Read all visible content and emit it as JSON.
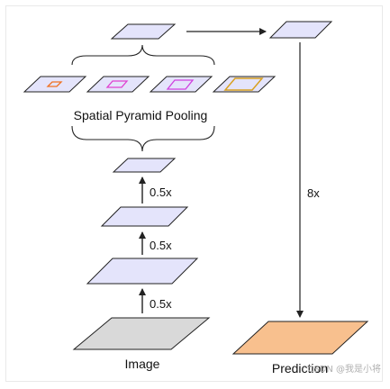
{
  "diagram": {
    "input_label": "Image",
    "scale_label": "0.5x",
    "pooling_label": "Spatial Pyramid Pooling",
    "upsample_label": "8x",
    "output_label": "Prediction",
    "watermark": "CSDN @我是小将"
  },
  "colors": {
    "feature_map_fill": "#e4e4fb",
    "input_fill": "#d9d9d9",
    "prediction_fill": "#f8c08e",
    "stroke": "#222222",
    "pool_box_1": "#f07020",
    "pool_box_2": "#e040d0",
    "pool_box_3": "#d040e0",
    "pool_box_4": "#d8a020"
  }
}
